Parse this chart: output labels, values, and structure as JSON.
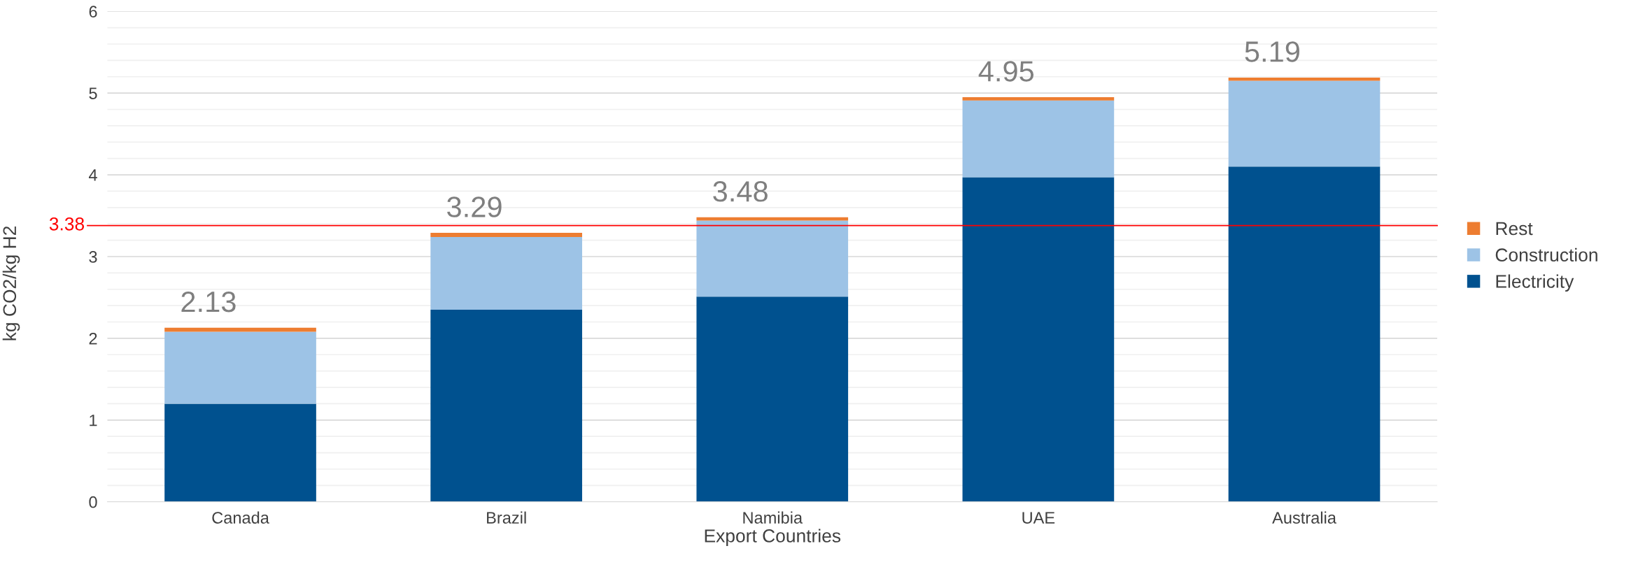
{
  "chart_data": {
    "type": "bar",
    "stacked": true,
    "xlabel": "Export Countries",
    "ylabel": "kg CO2/kg H2",
    "categories": [
      "Canada",
      "Brazil",
      "Namibia",
      "UAE",
      "Australia"
    ],
    "series": [
      {
        "name": "Electricity",
        "color": "#00518f",
        "values": [
          1.2,
          2.35,
          2.51,
          3.97,
          4.1
        ]
      },
      {
        "name": "Construction",
        "color": "#9dc3e6",
        "values": [
          0.88,
          0.89,
          0.93,
          0.94,
          1.05
        ]
      },
      {
        "name": "Rest",
        "color": "#ed7d31",
        "values": [
          0.05,
          0.05,
          0.04,
          0.04,
          0.04
        ]
      }
    ],
    "totals": [
      "2.13",
      "3.29",
      "3.48",
      "4.95",
      "5.19"
    ],
    "ylim": [
      0,
      6
    ],
    "yticks": [
      0,
      {
        "value": 0.2,
        "label": null
      },
      {
        "value": 0.4,
        "label": null
      },
      {
        "value": 0.6,
        "label": null
      },
      {
        "value": 0.8,
        "label": null
      },
      1,
      {
        "value": 1.2,
        "label": null
      },
      {
        "value": 1.4,
        "label": null
      },
      {
        "value": 1.6,
        "label": null
      },
      {
        "value": 1.8,
        "label": null
      },
      2,
      {
        "value": 2.2,
        "label": null
      },
      {
        "value": 2.4,
        "label": null
      },
      {
        "value": 2.6,
        "label": null
      },
      {
        "value": 2.8,
        "label": null
      },
      3,
      {
        "value": 3.2,
        "label": null
      },
      {
        "value": 3.4,
        "label": null
      },
      {
        "value": 3.6,
        "label": null
      },
      {
        "value": 3.8,
        "label": null
      },
      4,
      {
        "value": 4.2,
        "label": null
      },
      {
        "value": 4.4,
        "label": null
      },
      {
        "value": 4.6,
        "label": null
      },
      {
        "value": 4.8,
        "label": null
      },
      5,
      {
        "value": 5.2,
        "label": null
      },
      {
        "value": 5.4,
        "label": null
      },
      {
        "value": 5.6,
        "label": null
      },
      {
        "value": 5.8,
        "label": null
      },
      6
    ],
    "ref_lines": [
      {
        "axis": "y",
        "value": 3.38,
        "label": "3.38",
        "color": "#ff0000"
      }
    ],
    "grid": "y",
    "legend": "right"
  }
}
